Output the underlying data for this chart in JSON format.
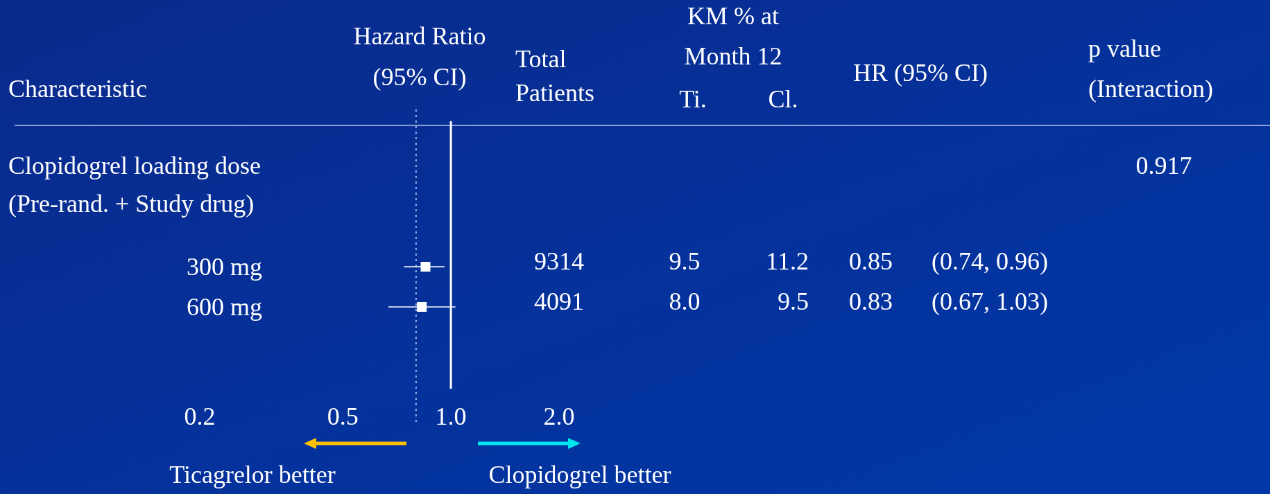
{
  "chart_data": {
    "type": "scatter",
    "categories": [
      "300 mg",
      "600 mg"
    ],
    "values": [
      0.85,
      0.83
    ],
    "errors": [
      [
        0.74,
        0.96
      ],
      [
        0.67,
        1.03
      ]
    ],
    "color": "#ffffff",
    "marker": "square",
    "log": "x",
    "xlim": [
      0.2,
      2.0
    ],
    "orientation": "horizontal",
    "xticks": [
      {
        "value": 0.2,
        "label": "0.2"
      },
      {
        "value": 0.5,
        "label": "0.5"
      },
      {
        "value": 1,
        "label": "1.0"
      },
      {
        "value": 2,
        "label": "2.0"
      }
    ],
    "ref_lines": [
      {
        "axis": "x",
        "value": 1,
        "color": "#ffffff",
        "line_style": "solid"
      },
      {
        "axis": "x",
        "value": 0.8,
        "color": "#9fb4e8",
        "line_style": "dotted"
      }
    ],
    "annotations": [
      "Characteristic",
      "Total\nPatients",
      "KM % at\nMonth 12",
      "Ti.",
      "Cl.",
      "HR (95% CI)",
      "p value\n(Interaction)",
      "Clopidogrel loading dose\n(Pre-rand. + Study drug)",
      "0.917",
      "9314",
      "9.5",
      "11.2",
      "0.85",
      "(0.74, 0.96)",
      "4091",
      "8.0",
      "9.5",
      "0.83",
      "(0.67, 1.03)",
      "Ticagrelor better",
      "Clopidogrel better",
      "Hazard Ratio\n(95% CI)"
    ]
  }
}
